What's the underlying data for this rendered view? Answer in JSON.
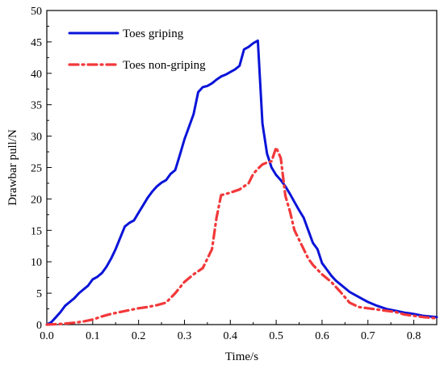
{
  "chart_data": {
    "type": "line",
    "xlabel": "Time/s",
    "ylabel": "Drawbar pull/N",
    "xlim": [
      0,
      0.85
    ],
    "ylim": [
      0,
      50
    ],
    "xticks": [
      0.0,
      0.1,
      0.2,
      0.3,
      0.4,
      0.5,
      0.6,
      0.7,
      0.8
    ],
    "xtick_labels": [
      "0.0",
      "0.1",
      "0.2",
      "0.3",
      "0.4",
      "0.5",
      "0.6",
      "0.7",
      "0.8"
    ],
    "yticks": [
      0,
      5,
      10,
      15,
      20,
      25,
      30,
      35,
      40,
      45,
      50
    ],
    "ytick_labels": [
      "0",
      "5",
      "10",
      "15",
      "20",
      "25",
      "30",
      "35",
      "40",
      "45",
      "50"
    ],
    "grid": false,
    "legend_position": "top-left",
    "series": [
      {
        "name": "Toes griping",
        "color": "#0a14d8",
        "style": "solid",
        "x": [
          0.0,
          0.01,
          0.02,
          0.03,
          0.04,
          0.05,
          0.06,
          0.07,
          0.08,
          0.09,
          0.1,
          0.11,
          0.12,
          0.13,
          0.14,
          0.15,
          0.16,
          0.17,
          0.18,
          0.19,
          0.2,
          0.21,
          0.22,
          0.23,
          0.24,
          0.25,
          0.26,
          0.27,
          0.28,
          0.29,
          0.3,
          0.31,
          0.32,
          0.33,
          0.34,
          0.35,
          0.36,
          0.37,
          0.38,
          0.39,
          0.4,
          0.41,
          0.42,
          0.43,
          0.44,
          0.45,
          0.46,
          0.47,
          0.48,
          0.49,
          0.5,
          0.51,
          0.52,
          0.53,
          0.54,
          0.55,
          0.56,
          0.57,
          0.58,
          0.59,
          0.6,
          0.61,
          0.62,
          0.63,
          0.64,
          0.65,
          0.66,
          0.67,
          0.68,
          0.69,
          0.7,
          0.72,
          0.74,
          0.76,
          0.78,
          0.8,
          0.82,
          0.85
        ],
        "y": [
          0.0,
          0.4,
          1.2,
          2.0,
          3.0,
          3.6,
          4.2,
          5.0,
          5.6,
          6.2,
          7.2,
          7.6,
          8.2,
          9.2,
          10.5,
          12.0,
          13.8,
          15.6,
          16.2,
          16.6,
          17.8,
          19.0,
          20.2,
          21.2,
          22.0,
          22.6,
          23.0,
          24.0,
          24.6,
          27.0,
          29.5,
          31.5,
          33.5,
          37.0,
          37.8,
          38.0,
          38.4,
          39.0,
          39.5,
          39.8,
          40.2,
          40.6,
          41.2,
          43.8,
          44.2,
          44.8,
          45.2,
          32.0,
          27.2,
          25.0,
          23.8,
          23.0,
          22.0,
          20.8,
          19.5,
          18.2,
          17.0,
          15.0,
          13.0,
          12.0,
          9.8,
          8.8,
          7.8,
          7.0,
          6.4,
          5.8,
          5.2,
          4.8,
          4.4,
          4.0,
          3.6,
          3.0,
          2.5,
          2.2,
          1.9,
          1.7,
          1.4,
          1.2
        ]
      },
      {
        "name": "Toes non-griping",
        "color": "#f2383a",
        "style": "dash-dot",
        "x": [
          0.0,
          0.03,
          0.06,
          0.08,
          0.1,
          0.12,
          0.14,
          0.16,
          0.18,
          0.2,
          0.22,
          0.24,
          0.26,
          0.28,
          0.3,
          0.32,
          0.34,
          0.35,
          0.36,
          0.37,
          0.38,
          0.39,
          0.4,
          0.42,
          0.44,
          0.45,
          0.46,
          0.47,
          0.48,
          0.49,
          0.5,
          0.51,
          0.52,
          0.53,
          0.54,
          0.55,
          0.56,
          0.57,
          0.58,
          0.6,
          0.62,
          0.64,
          0.66,
          0.68,
          0.7,
          0.72,
          0.74,
          0.76,
          0.78,
          0.8,
          0.82,
          0.85
        ],
        "y": [
          0.0,
          0.1,
          0.3,
          0.5,
          0.8,
          1.3,
          1.7,
          2.0,
          2.3,
          2.6,
          2.8,
          3.1,
          3.5,
          5.0,
          6.8,
          8.0,
          9.0,
          10.5,
          12.0,
          17.0,
          20.6,
          20.8,
          21.0,
          21.5,
          22.5,
          24.0,
          24.8,
          25.5,
          25.8,
          26.0,
          28.2,
          26.5,
          20.5,
          18.0,
          15.0,
          13.5,
          12.0,
          10.5,
          9.5,
          8.0,
          6.8,
          5.2,
          3.5,
          2.8,
          2.6,
          2.4,
          2.2,
          2.0,
          1.6,
          1.4,
          1.2,
          1.0
        ]
      }
    ]
  }
}
